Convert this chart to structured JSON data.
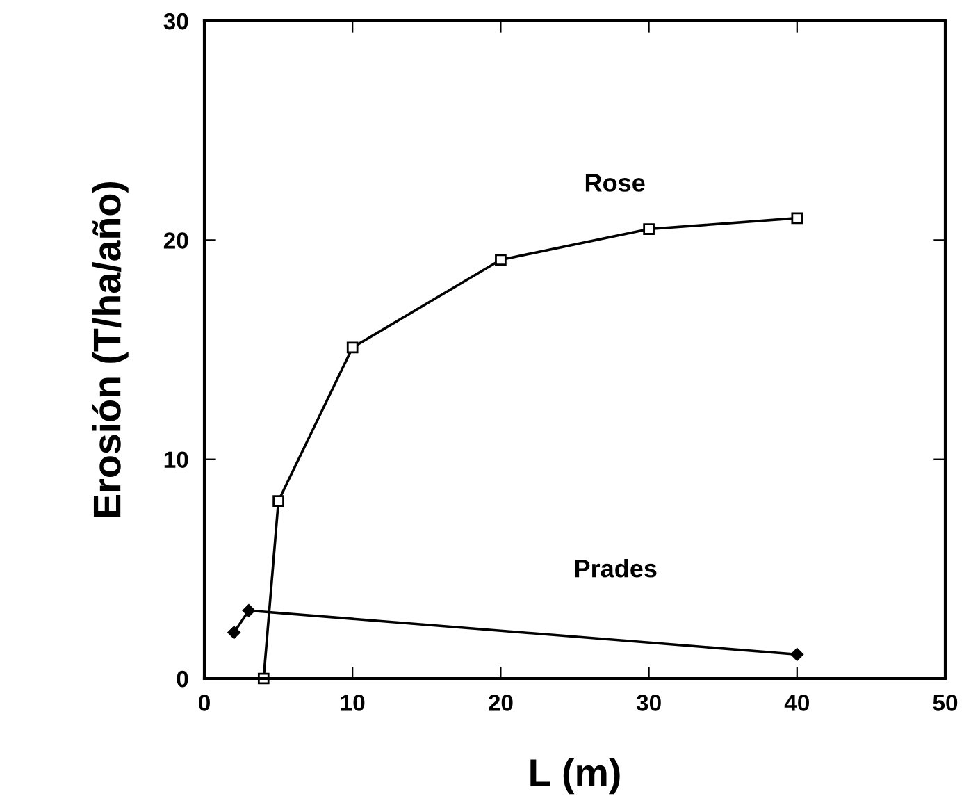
{
  "chart_data": {
    "type": "line",
    "xlabel": "L (m)",
    "ylabel": "Erosión (T/ha/año)",
    "xlim": [
      0,
      50
    ],
    "ylim": [
      0,
      30
    ],
    "xticks": [
      0,
      10,
      20,
      30,
      40,
      50
    ],
    "yticks": [
      0,
      10,
      20,
      30
    ],
    "grid": false,
    "legend": false,
    "series": [
      {
        "name": "Rose",
        "color": "#000000",
        "marker": "square",
        "x": [
          4,
          5,
          10,
          20,
          30,
          40
        ],
        "values": [
          0,
          8.1,
          15.1,
          19.1,
          20.5,
          21.0
        ]
      },
      {
        "name": "Prades",
        "color": "#000000",
        "marker": "diamond",
        "x": [
          2,
          3,
          40
        ],
        "values": [
          2.1,
          3.1,
          1.1
        ]
      }
    ]
  }
}
